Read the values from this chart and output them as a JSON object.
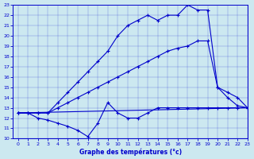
{
  "title": "Graphe des températures (°c)",
  "bg_color": "#cce8f0",
  "line_color": "#0000cc",
  "xlim": [
    -0.5,
    23
  ],
  "ylim": [
    10,
    23
  ],
  "xticks": [
    0,
    1,
    2,
    3,
    4,
    5,
    6,
    7,
    8,
    9,
    10,
    11,
    12,
    13,
    14,
    15,
    16,
    17,
    18,
    19,
    20,
    21,
    22,
    23
  ],
  "yticks": [
    10,
    11,
    12,
    13,
    14,
    15,
    16,
    17,
    18,
    19,
    20,
    21,
    22,
    23
  ],
  "line1_x": [
    0,
    23
  ],
  "line1_y": [
    12.5,
    13.0
  ],
  "line2_x": [
    0,
    1,
    2,
    3,
    4,
    5,
    6,
    7,
    8,
    9,
    10,
    11,
    12,
    13,
    14,
    15,
    16,
    17,
    18,
    19,
    20,
    21,
    22,
    23
  ],
  "line2_y": [
    12.5,
    12.5,
    12.0,
    11.8,
    11.5,
    11.2,
    10.8,
    10.2,
    11.5,
    13.5,
    12.5,
    12.0,
    12.0,
    12.5,
    13.0,
    13.0,
    13.0,
    13.0,
    13.0,
    13.0,
    13.0,
    13.0,
    13.0,
    13.0
  ],
  "line3_x": [
    0,
    1,
    2,
    3,
    4,
    5,
    6,
    7,
    8,
    9,
    10,
    11,
    12,
    13,
    14,
    15,
    16,
    17,
    18,
    19,
    20,
    21,
    22,
    23
  ],
  "line3_y": [
    12.5,
    12.5,
    12.5,
    12.5,
    13.0,
    13.5,
    14.0,
    14.5,
    15.0,
    15.5,
    16.0,
    16.5,
    17.0,
    17.5,
    18.0,
    18.5,
    18.8,
    19.0,
    19.5,
    19.5,
    15.0,
    14.0,
    13.2,
    13.0
  ],
  "line4_x": [
    0,
    1,
    2,
    3,
    4,
    5,
    6,
    7,
    8,
    9,
    10,
    11,
    12,
    13,
    14,
    15,
    16,
    17,
    18,
    19,
    20,
    21,
    22,
    23
  ],
  "line4_y": [
    12.5,
    12.5,
    12.5,
    12.5,
    13.5,
    14.5,
    15.5,
    16.5,
    17.5,
    18.5,
    20.0,
    21.0,
    21.5,
    22.0,
    21.5,
    22.0,
    22.0,
    23.0,
    22.5,
    22.5,
    15.0,
    14.5,
    14.0,
    13.0
  ]
}
